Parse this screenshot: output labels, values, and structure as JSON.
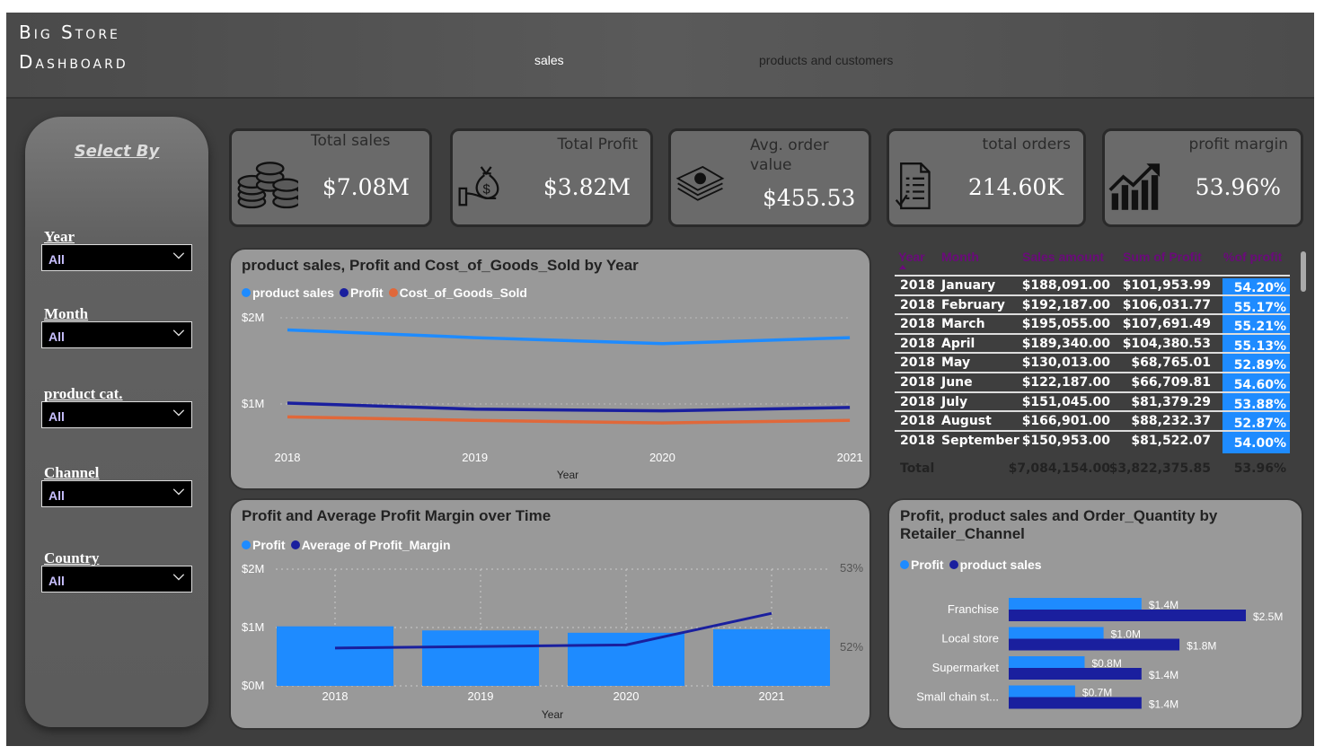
{
  "header": {
    "title_line1": "Big Store",
    "title_line2": "Dashboard",
    "nav": [
      "sales",
      "products and customers"
    ]
  },
  "sidebar": {
    "heading": "Select By",
    "filters": [
      {
        "label": "Year",
        "value": "All"
      },
      {
        "label": "Month",
        "value": "All"
      },
      {
        "label": "product cat.",
        "value": "All"
      },
      {
        "label": "Channel",
        "value": "All"
      },
      {
        "label": "Country",
        "value": "All"
      }
    ]
  },
  "kpis": [
    {
      "label": "Total sales",
      "value": "$7.08M",
      "icon": "coins-stack-icon"
    },
    {
      "label": "Total Profit",
      "value": "$3.82M",
      "icon": "money-bag-hand-icon"
    },
    {
      "label": "Avg. order value",
      "value": "$455.53",
      "icon": "cash-stack-icon"
    },
    {
      "label": "total orders",
      "value": "214.60K",
      "icon": "invoice-document-icon"
    },
    {
      "label": "profit margin",
      "value": "53.96%",
      "icon": "growth-chart-icon"
    }
  ],
  "colors": {
    "light_blue": "#1e8bff",
    "dark_blue": "#1a1f9e",
    "orange": "#e0683a",
    "panel": "#999999"
  },
  "table": {
    "headers": [
      "Year",
      "Month",
      "Sales amount",
      "Sum of Profit",
      "%of profit"
    ],
    "rows": [
      [
        "2018",
        "January",
        "$188,091.00",
        "$101,953.99",
        "54.20%"
      ],
      [
        "2018",
        "February",
        "$192,187.00",
        "$106,031.77",
        "55.17%"
      ],
      [
        "2018",
        "March",
        "$195,055.00",
        "$107,691.49",
        "55.21%"
      ],
      [
        "2018",
        "April",
        "$189,340.00",
        "$104,380.53",
        "55.13%"
      ],
      [
        "2018",
        "May",
        "$130,013.00",
        "$68,765.01",
        "52.89%"
      ],
      [
        "2018",
        "June",
        "$122,187.00",
        "$66,709.81",
        "54.60%"
      ],
      [
        "2018",
        "July",
        "$151,045.00",
        "$81,379.29",
        "53.88%"
      ],
      [
        "2018",
        "August",
        "$166,901.00",
        "$88,232.37",
        "52.87%"
      ],
      [
        "2018",
        "September",
        "$150,953.00",
        "$81,522.07",
        "54.00%"
      ]
    ],
    "total": {
      "label": "Total",
      "sales": "$7,084,154.00",
      "profit": "$3,822,375.85",
      "pct": "53.96%"
    }
  },
  "chart_data": [
    {
      "type": "line",
      "title": "product sales, Profit and Cost_of_Goods_Sold by Year",
      "xlabel": "Year",
      "ylabel": "",
      "categories": [
        "2018",
        "2019",
        "2020",
        "2021"
      ],
      "yticks": [
        "$1M",
        "$2M"
      ],
      "ylim": [
        0,
        2000000
      ],
      "legend": "top-left",
      "series": [
        {
          "name": "product sales",
          "color": "#1e8bff",
          "values": [
            1860000,
            1770000,
            1700000,
            1770000
          ]
        },
        {
          "name": "Profit",
          "color": "#1a1f9e",
          "values": [
            1010000,
            940000,
            920000,
            960000
          ]
        },
        {
          "name": "Cost_of_Goods_Sold",
          "color": "#e0683a",
          "values": [
            850000,
            810000,
            780000,
            810000
          ]
        }
      ]
    },
    {
      "type": "bar+line",
      "title": "Profit and Average Profit Margin over Time",
      "xlabel": "Year",
      "categories": [
        "2018",
        "2019",
        "2020",
        "2021"
      ],
      "yticks": [
        "$0M",
        "$1M",
        "$2M"
      ],
      "ylim": [
        0,
        2000000
      ],
      "y2ticks": [
        "52%",
        "53%"
      ],
      "legend": "top-left",
      "series": [
        {
          "name": "Profit",
          "color": "#1e8bff",
          "type": "bar",
          "values": [
            1020000,
            950000,
            910000,
            970000
          ]
        },
        {
          "name": "Average of Profit_Margin",
          "color": "#1a1f9e",
          "type": "line",
          "axis": "right",
          "values": [
            51.99,
            52.01,
            52.03,
            52.43
          ]
        }
      ]
    },
    {
      "type": "hbar",
      "title": "Profit, product sales and Order_Quantity by Retailer_Channel",
      "categories": [
        "Franchise",
        "Local store",
        "Supermarket",
        "Small chain st..."
      ],
      "legend": "top-left",
      "series": [
        {
          "name": "Profit",
          "color": "#1e8bff",
          "values": [
            1.4,
            1.0,
            0.8,
            0.7
          ],
          "labels": [
            "$1.4M",
            "$1.0M",
            "$0.8M",
            "$0.7M"
          ]
        },
        {
          "name": "product sales",
          "color": "#1a1f9e",
          "values": [
            2.5,
            1.8,
            1.4,
            1.4
          ],
          "labels": [
            "$2.5M",
            "$1.8M",
            "$1.4M",
            "$1.4M"
          ]
        }
      ]
    }
  ]
}
